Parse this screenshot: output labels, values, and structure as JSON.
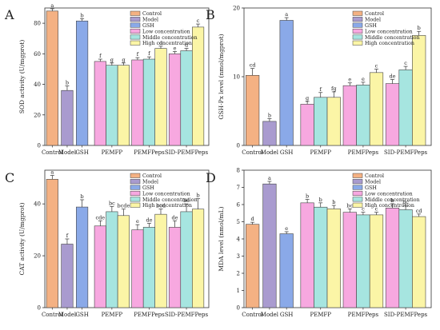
{
  "legend_colors": {
    "Control": "#f4b183",
    "Model": "#a99bcf",
    "GSH": "#8aa9e8",
    "Low concentration": "#f7a8e0",
    "Middle concentration": "#a6e5e0",
    "High concentration": "#fbf5a6"
  },
  "chart_data": [
    {
      "type": "bar",
      "panel_label": "A",
      "ylabel": "SOD activity (U/mgprot)",
      "ylim": [
        0,
        90
      ],
      "yticks": [
        0,
        20,
        40,
        60,
        80
      ],
      "legend_position": "top-right",
      "categories": [
        "Control",
        "Model",
        "GSH",
        "PEMFP",
        "PEMFPeps",
        "SID-PEMFPeps"
      ],
      "single_bars": [
        {
          "category": "Control",
          "series": "Control",
          "value": 88,
          "error": 1.5,
          "label": "a"
        },
        {
          "category": "Model",
          "series": "Model",
          "value": 36,
          "error": 3,
          "label": "b"
        },
        {
          "category": "GSH",
          "series": "GSH",
          "value": 81.5,
          "error": 1.5,
          "label": "b"
        }
      ],
      "groups": [
        {
          "category": "PEMFP",
          "values": [
            55,
            52.5,
            52.5
          ],
          "errors": [
            1.5,
            1.5,
            1.5
          ],
          "labels": [
            "f",
            "g",
            "g"
          ]
        },
        {
          "category": "PEMFPeps",
          "values": [
            56,
            56.5,
            63.5
          ],
          "errors": [
            1.5,
            1.5,
            1.5
          ],
          "labels": [
            "f",
            "f",
            "d"
          ]
        },
        {
          "category": "SID-PEMFPeps",
          "values": [
            60,
            62,
            77.5
          ],
          "errors": [
            1.5,
            1.5,
            2
          ],
          "labels": [
            "e",
            "d",
            "c"
          ]
        }
      ]
    },
    {
      "type": "bar",
      "panel_label": "B",
      "ylabel": "GSH-Px level (nmol/mgprot)",
      "ylim": [
        0,
        20
      ],
      "yticks": [
        0,
        10,
        20
      ],
      "legend_position": "top-right",
      "categories": [
        "Control",
        "Model",
        "GSH",
        "PEMFP",
        "PEMFPeps",
        "SID-PEMFPeps"
      ],
      "single_bars": [
        {
          "category": "Control",
          "series": "Control",
          "value": 10.2,
          "error": 1,
          "label": "cd"
        },
        {
          "category": "Model",
          "series": "Model",
          "value": 3.5,
          "error": 0.4,
          "label": "b"
        },
        {
          "category": "GSH",
          "series": "GSH",
          "value": 18.2,
          "error": 0.4,
          "label": "a"
        }
      ],
      "groups": [
        {
          "category": "PEMFP",
          "values": [
            6,
            7,
            7
          ],
          "errors": [
            0.4,
            0.7,
            0.8
          ],
          "labels": [
            "g",
            "f",
            "fg"
          ]
        },
        {
          "category": "PEMFPeps",
          "values": [
            8.7,
            8.8,
            10.6
          ],
          "errors": [
            0.4,
            0.4,
            0.5
          ],
          "labels": [
            "e",
            "e",
            "c"
          ]
        },
        {
          "category": "SID-PEMFPeps",
          "values": [
            9,
            11,
            16
          ],
          "errors": [
            0.6,
            0.5,
            0.6
          ],
          "labels": [
            "de",
            "c",
            "b"
          ]
        }
      ]
    },
    {
      "type": "bar",
      "panel_label": "C",
      "ylabel": "CAT activity (U/mgprot)",
      "ylim": [
        0,
        53
      ],
      "yticks": [
        0,
        20,
        40
      ],
      "legend_position": "top-right",
      "categories": [
        "Control",
        "Model",
        "GSH",
        "PEMFP",
        "PEMFPeps",
        "SID-PEMFPeps"
      ],
      "single_bars": [
        {
          "category": "Control",
          "series": "Control",
          "value": 49.5,
          "error": 1.5,
          "label": "a"
        },
        {
          "category": "Model",
          "series": "Model",
          "value": 24.5,
          "error": 2,
          "label": "f"
        },
        {
          "category": "GSH",
          "series": "GSH",
          "value": 38.8,
          "error": 2.8,
          "label": "b"
        }
      ],
      "groups": [
        {
          "category": "PEMFP",
          "values": [
            31.5,
            37,
            35.5
          ],
          "errors": [
            2,
            2,
            2.5
          ],
          "labels": [
            "cde",
            "bc",
            "bcde"
          ]
        },
        {
          "category": "PEMFPeps",
          "values": [
            30,
            31,
            36
          ],
          "errors": [
            2,
            1.5,
            2
          ],
          "labels": [
            "e",
            "de",
            "bcd"
          ]
        },
        {
          "category": "SID-PEMFPeps",
          "values": [
            31,
            37,
            38
          ],
          "errors": [
            2.5,
            3,
            4
          ],
          "labels": [
            "de",
            "bc",
            "b"
          ]
        }
      ]
    },
    {
      "type": "bar",
      "panel_label": "D",
      "ylabel": "MDA level (nmol/mL)",
      "ylim": [
        0,
        8
      ],
      "yticks": [
        0,
        1,
        2,
        3,
        4,
        5,
        6,
        7,
        8
      ],
      "legend_position": "top-right",
      "categories": [
        "Control",
        "Model",
        "GSH",
        "PEMFP",
        "PEMFPeps",
        "SID-PEMFPeps"
      ],
      "single_bars": [
        {
          "category": "Control",
          "series": "Control",
          "value": 4.85,
          "error": 0.12,
          "label": "d"
        },
        {
          "category": "Model",
          "series": "Model",
          "value": 7.2,
          "error": 0.15,
          "label": "a"
        },
        {
          "category": "GSH",
          "series": "GSH",
          "value": 4.3,
          "error": 0.12,
          "label": "e"
        }
      ],
      "groups": [
        {
          "category": "PEMFP",
          "values": [
            6.1,
            5.85,
            5.75
          ],
          "errors": [
            0.2,
            0.25,
            0.2
          ],
          "labels": [
            "b",
            "b",
            "b"
          ]
        },
        {
          "category": "PEMFPeps",
          "values": [
            5.55,
            5.4,
            5.4
          ],
          "errors": [
            0.2,
            0.15,
            0.15
          ],
          "labels": [
            "bc",
            "c",
            "c"
          ]
        },
        {
          "category": "SID-PEMFPeps",
          "values": [
            5.8,
            5.7,
            5.3
          ],
          "errors": [
            0.25,
            0.25,
            0.15
          ],
          "labels": [
            "b",
            "bc",
            "cd"
          ]
        }
      ]
    }
  ]
}
